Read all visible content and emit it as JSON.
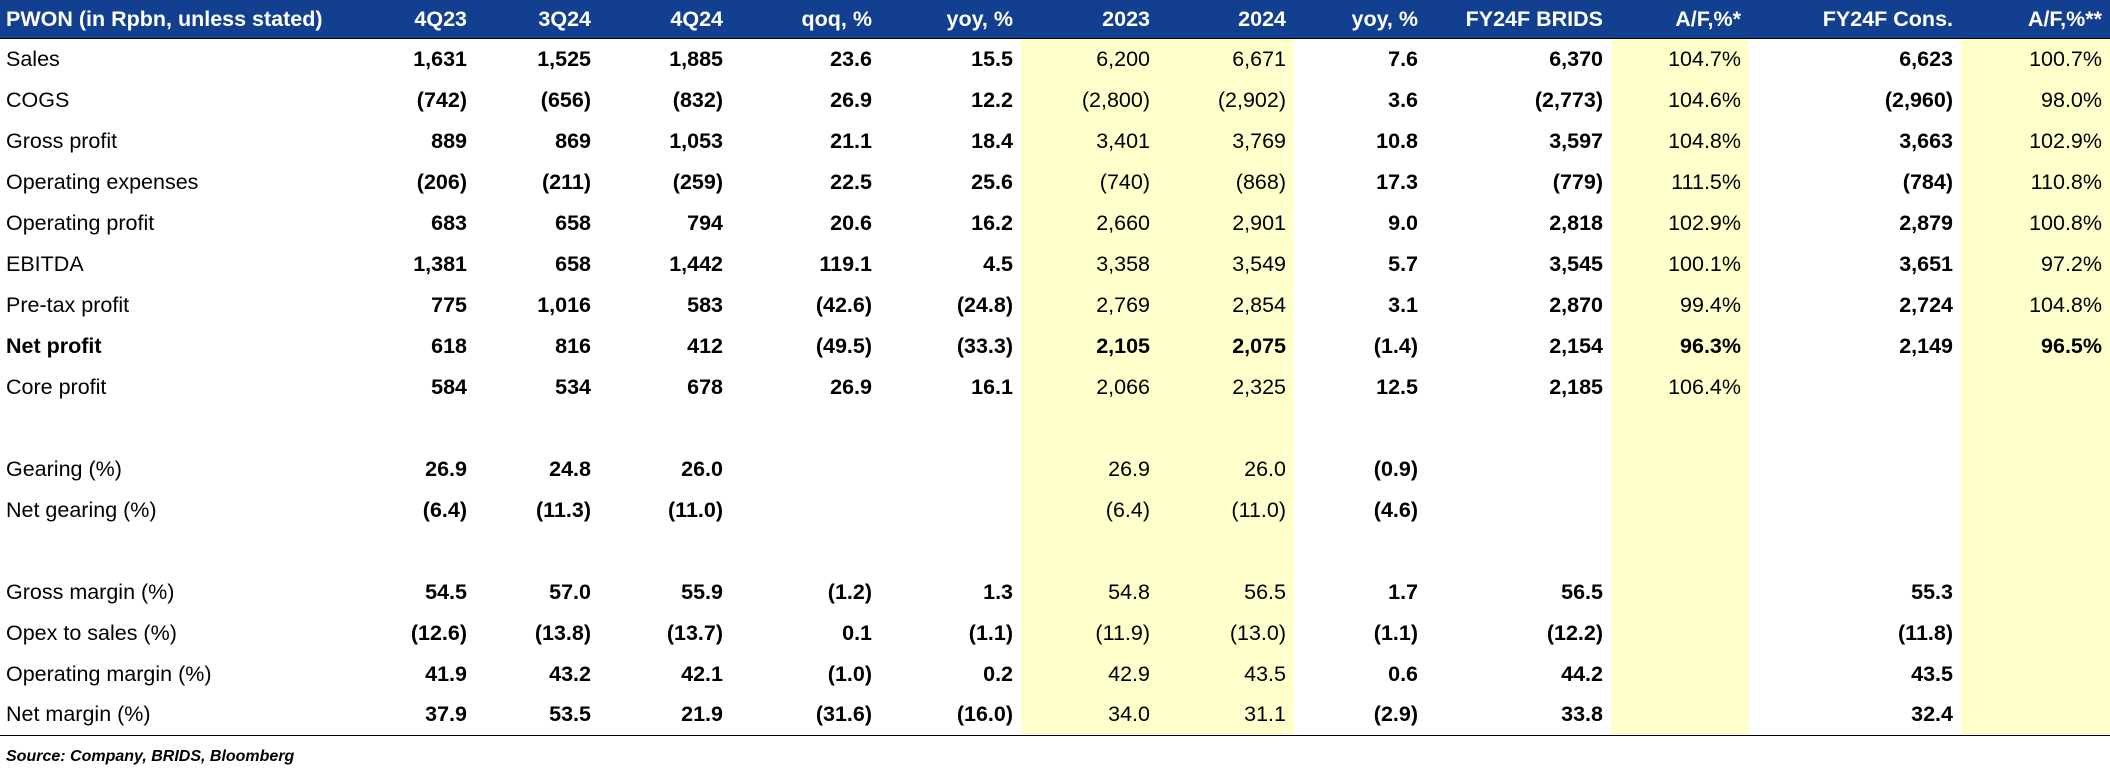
{
  "table": {
    "headers": [
      "PWON (in Rpbn, unless stated)",
      "4Q23",
      "3Q24",
      "4Q24",
      "qoq, %",
      "yoy, %",
      "2023",
      "2024",
      "yoy, %",
      "FY24F BRIDS",
      "A/F,%*",
      "FY24F Cons.",
      "A/F,%**"
    ],
    "rows": [
      {
        "cells": [
          "Sales",
          "1,631",
          "1,525",
          "1,885",
          "23.6",
          "15.5",
          "6,200",
          "6,671",
          "7.6",
          "6,370",
          "104.7%",
          "6,623",
          "100.7%"
        ],
        "bold_row": false
      },
      {
        "cells": [
          "COGS",
          "(742)",
          "(656)",
          "(832)",
          "26.9",
          "12.2",
          "(2,800)",
          "(2,902)",
          "3.6",
          "(2,773)",
          "104.6%",
          "(2,960)",
          "98.0%"
        ],
        "bold_row": false
      },
      {
        "cells": [
          "Gross profit",
          "889",
          "869",
          "1,053",
          "21.1",
          "18.4",
          "3,401",
          "3,769",
          "10.8",
          "3,597",
          "104.8%",
          "3,663",
          "102.9%"
        ],
        "bold_row": false
      },
      {
        "cells": [
          "Operating expenses",
          "(206)",
          "(211)",
          "(259)",
          "22.5",
          "25.6",
          "(740)",
          "(868)",
          "17.3",
          "(779)",
          "111.5%",
          "(784)",
          "110.8%"
        ],
        "bold_row": false
      },
      {
        "cells": [
          "Operating profit",
          "683",
          "658",
          "794",
          "20.6",
          "16.2",
          "2,660",
          "2,901",
          "9.0",
          "2,818",
          "102.9%",
          "2,879",
          "100.8%"
        ],
        "bold_row": false
      },
      {
        "cells": [
          "EBITDA",
          "1,381",
          "658",
          "1,442",
          "119.1",
          "4.5",
          "3,358",
          "3,549",
          "5.7",
          "3,545",
          "100.1%",
          "3,651",
          "97.2%"
        ],
        "bold_row": false
      },
      {
        "cells": [
          "Pre-tax profit",
          "775",
          "1,016",
          "583",
          "(42.6)",
          "(24.8)",
          "2,769",
          "2,854",
          "3.1",
          "2,870",
          "99.4%",
          "2,724",
          "104.8%"
        ],
        "bold_row": false
      },
      {
        "cells": [
          "Net profit",
          "618",
          "816",
          "412",
          "(49.5)",
          "(33.3)",
          "2,105",
          "2,075",
          "(1.4)",
          "2,154",
          "96.3%",
          "2,149",
          "96.5%"
        ],
        "bold_row": true
      },
      {
        "cells": [
          "Core profit",
          "584",
          "534",
          "678",
          "26.9",
          "16.1",
          "2,066",
          "2,325",
          "12.5",
          "2,185",
          "106.4%",
          "",
          ""
        ],
        "bold_row": false
      },
      {
        "cells": [
          "",
          "",
          "",
          "",
          "",
          "",
          "",
          "",
          "",
          "",
          "",
          "",
          ""
        ],
        "bold_row": false
      },
      {
        "cells": [
          "Gearing (%)",
          "26.9",
          "24.8",
          "26.0",
          "",
          "",
          "26.9",
          "26.0",
          "(0.9)",
          "",
          "",
          "",
          ""
        ],
        "bold_row": false
      },
      {
        "cells": [
          "Net gearing (%)",
          "(6.4)",
          "(11.3)",
          "(11.0)",
          "",
          "",
          "(6.4)",
          "(11.0)",
          "(4.6)",
          "",
          "",
          "",
          ""
        ],
        "bold_row": false
      },
      {
        "cells": [
          "",
          "",
          "",
          "",
          "",
          "",
          "",
          "",
          "",
          "",
          "",
          "",
          ""
        ],
        "bold_row": false
      },
      {
        "cells": [
          "Gross margin (%)",
          "54.5",
          "57.0",
          "55.9",
          "(1.2)",
          "1.3",
          "54.8",
          "56.5",
          "1.7",
          "56.5",
          "",
          "55.3",
          ""
        ],
        "bold_row": false
      },
      {
        "cells": [
          "Opex to sales (%)",
          "(12.6)",
          "(13.8)",
          "(13.7)",
          "0.1",
          "(1.1)",
          "(11.9)",
          "(13.0)",
          "(1.1)",
          "(12.2)",
          "",
          "(11.8)",
          ""
        ],
        "bold_row": false
      },
      {
        "cells": [
          "Operating margin (%)",
          "41.9",
          "43.2",
          "42.1",
          "(1.0)",
          "0.2",
          "42.9",
          "43.5",
          "0.6",
          "44.2",
          "",
          "43.5",
          ""
        ],
        "bold_row": false
      },
      {
        "cells": [
          "Net margin (%)",
          "37.9",
          "53.5",
          "21.9",
          "(31.6)",
          "(16.0)",
          "34.0",
          "31.1",
          "(2.9)",
          "33.8",
          "",
          "32.4",
          ""
        ],
        "bold_row": false
      }
    ]
  },
  "footer": {
    "source": "Source: Company, BRIDS, Bloomberg"
  },
  "colors": {
    "header_bg": "#123f8f",
    "header_text": "#ffffff",
    "highlight_bg": "#ffffcc"
  }
}
